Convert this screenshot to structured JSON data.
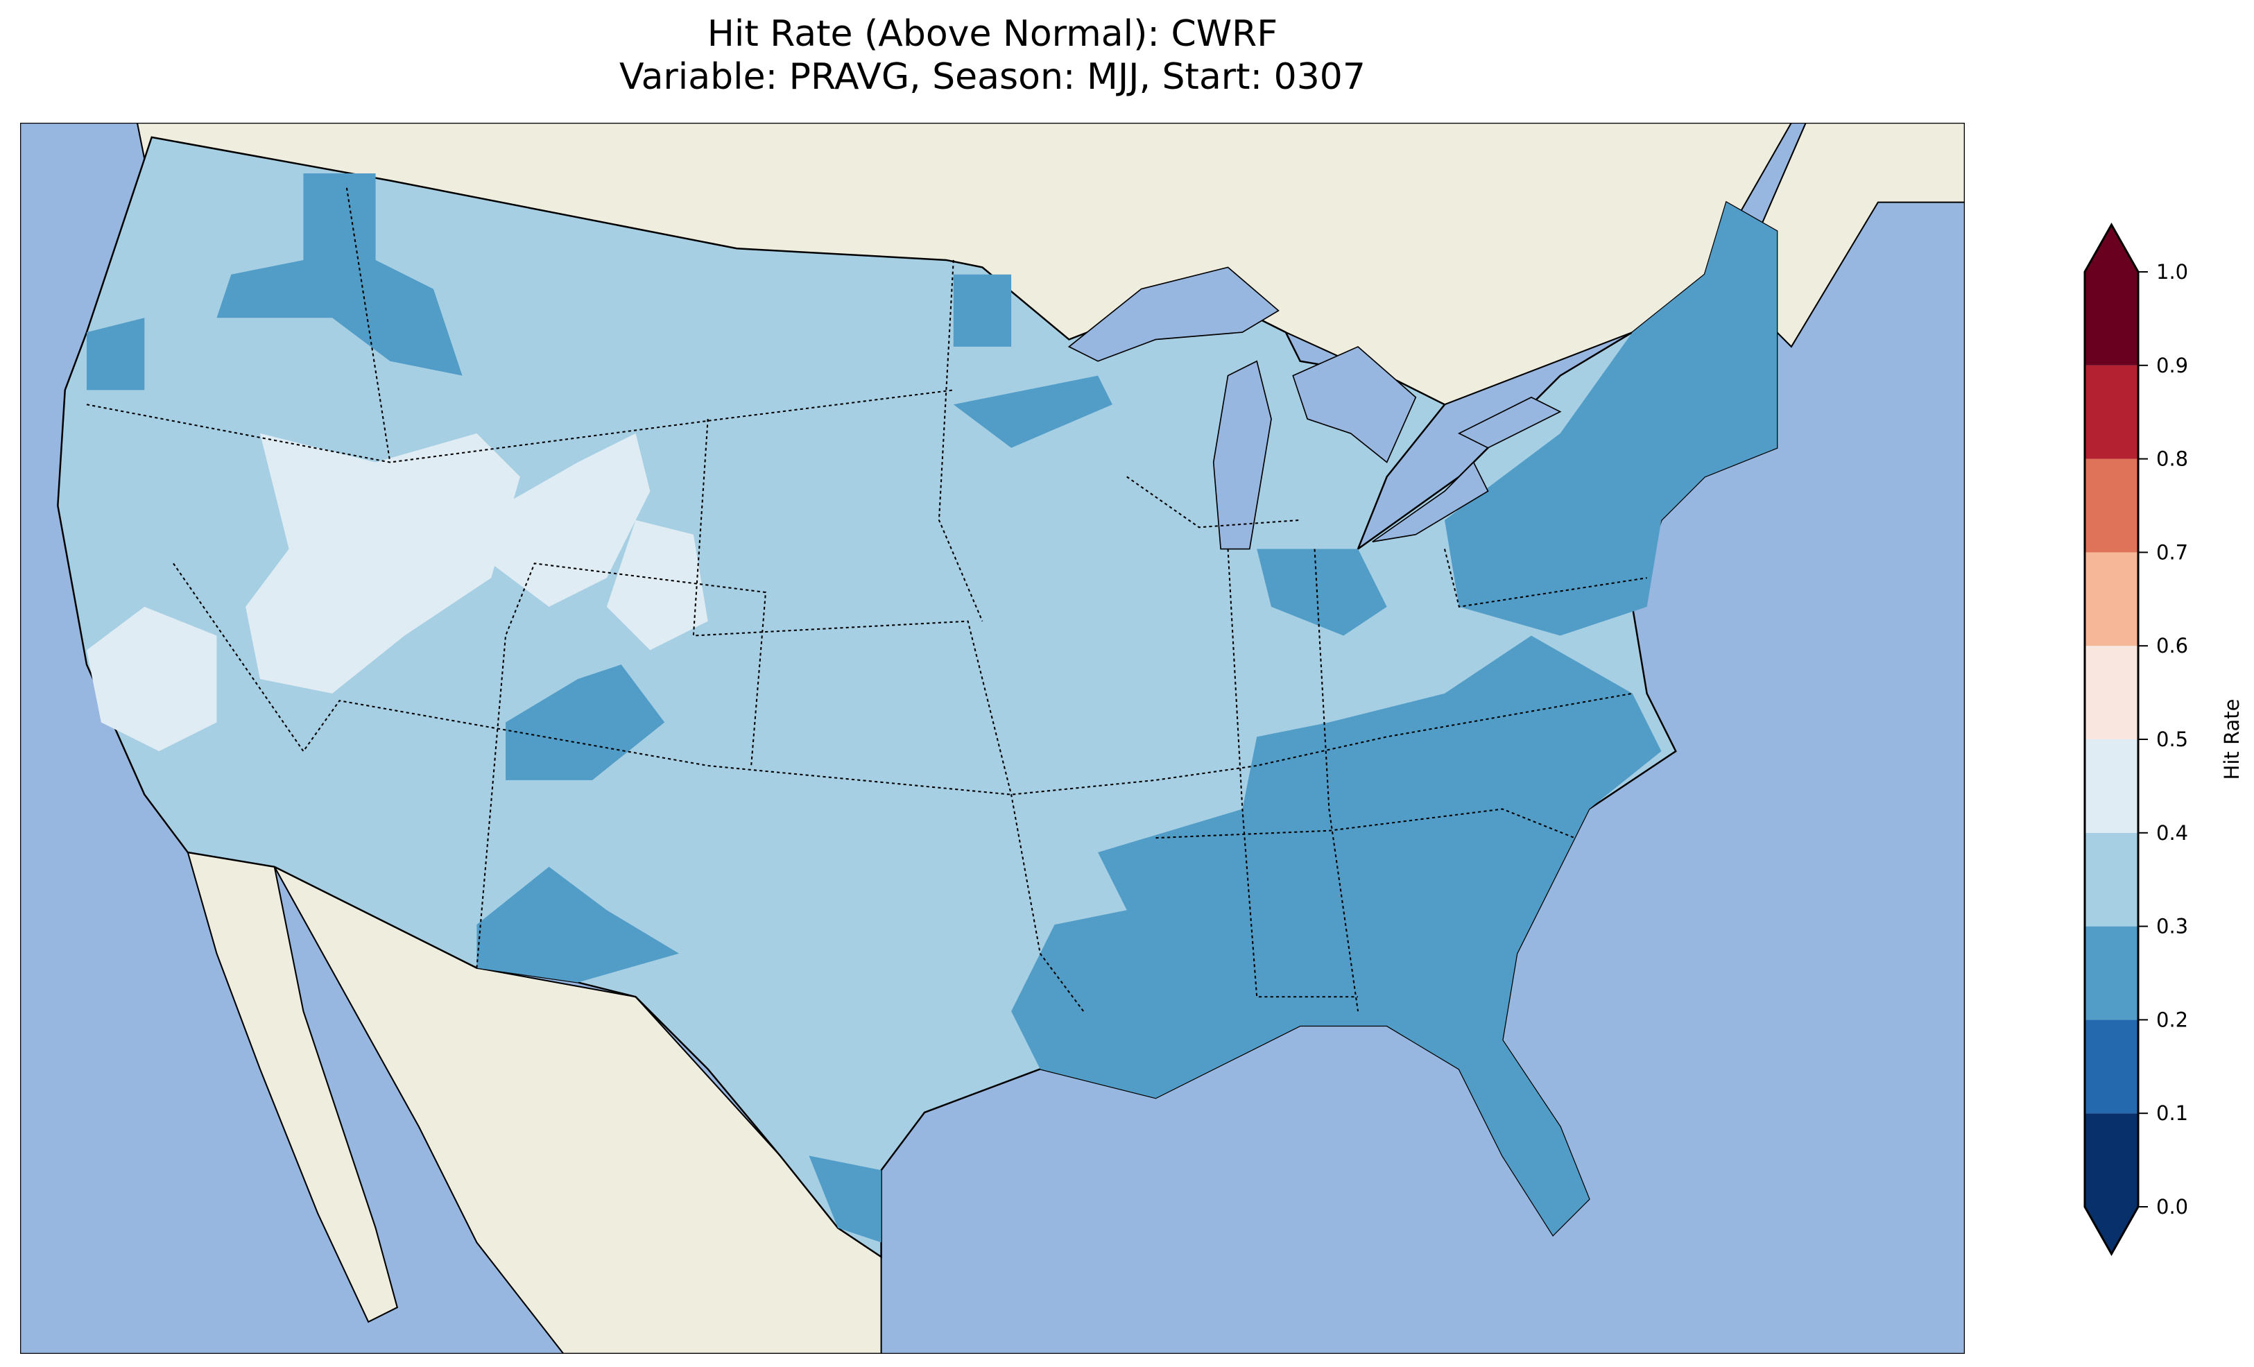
{
  "chart_data": {
    "type": "heatmap",
    "title_line1": "Hit Rate (Above Normal): CWRF",
    "title_line2": "Variable: PRAVG, Season: MJJ, Start: 0307",
    "colorbar": {
      "label": "Hit Rate",
      "range": [
        0.0,
        1.0
      ],
      "extend": "both",
      "ticks": [
        "0.0",
        "0.1",
        "0.2",
        "0.3",
        "0.4",
        "0.5",
        "0.6",
        "0.7",
        "0.8",
        "0.9",
        "1.0"
      ],
      "levels": [
        0.0,
        0.1,
        0.2,
        0.3,
        0.4,
        0.5,
        0.6,
        0.7,
        0.8,
        0.9,
        1.0
      ],
      "colors": [
        "#08306b",
        "#2468ad",
        "#529dc8",
        "#a7cfe4",
        "#e0ecf3",
        "#f9e6de",
        "#f6b799",
        "#de7359",
        "#b42130",
        "#6a0020"
      ]
    },
    "map": {
      "region": "Contiguous United States",
      "ocean_color": "#97b6e0",
      "land_color": "#efedde",
      "dominant_range": "0.3-0.4",
      "lower_range_areas": "Southeast, Gulf Coast, Florida, Northeast, parts of West",
      "higher_range_areas": "Nevada, Utah, Wyoming, central California"
    }
  }
}
